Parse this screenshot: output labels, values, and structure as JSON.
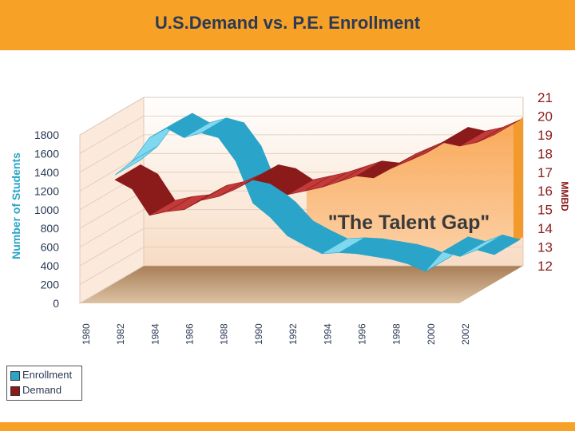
{
  "header": {
    "title": "U.S.Demand vs. P.E. Enrollment"
  },
  "colors": {
    "header": "#f7a127",
    "enrollment": "#2aa4c8",
    "demand": "#8b1a1a",
    "gap_fill": "#f8b060",
    "floor": "#b8906a"
  },
  "chart_data": {
    "type": "line",
    "title": "U.S.Demand vs. P.E. Enrollment",
    "x": [
      1980,
      1981,
      1982,
      1983,
      1984,
      1985,
      1986,
      1987,
      1988,
      1989,
      1990,
      1991,
      1992,
      1993,
      1994,
      1995,
      1996,
      1997,
      1998,
      1999,
      2000,
      2001,
      2002
    ],
    "x_tick_labels": [
      "1980",
      "1982",
      "1984",
      "1986",
      "1988",
      "1990",
      "1992",
      "1994",
      "1996",
      "1998",
      "2000",
      "2002"
    ],
    "series": [
      {
        "name": "Enrollment",
        "axis": "left",
        "values": [
          1150,
          1300,
          1550,
          1650,
          1550,
          1600,
          1550,
          1300,
          850,
          700,
          500,
          400,
          310,
          320,
          310,
          280,
          250,
          200,
          120,
          330,
          280,
          350,
          300
        ]
      },
      {
        "name": "Demand",
        "axis": "right",
        "values": [
          17.5,
          17.0,
          15.6,
          15.8,
          15.9,
          16.4,
          16.6,
          17.0,
          17.5,
          17.3,
          16.7,
          16.9,
          17.1,
          17.4,
          17.7,
          17.6,
          18.1,
          18.5,
          18.9,
          19.5,
          19.3,
          19.5,
          19.9
        ]
      }
    ],
    "y_left": {
      "label": "Number of Students",
      "ticks": [
        "0",
        "200",
        "400",
        "600",
        "800",
        "1000",
        "1200",
        "1400",
        "1600",
        "1800"
      ],
      "ylim": [
        0,
        1800
      ]
    },
    "y_right": {
      "label": "MMBD",
      "ticks": [
        "12",
        "13",
        "14",
        "15",
        "16",
        "17",
        "18",
        "19",
        "20",
        "21"
      ],
      "ylim": [
        12,
        21
      ]
    },
    "annotation": "\"The Talent Gap\"",
    "legend": [
      "Enrollment",
      "Demand"
    ],
    "legend_position": "bottom-left"
  }
}
